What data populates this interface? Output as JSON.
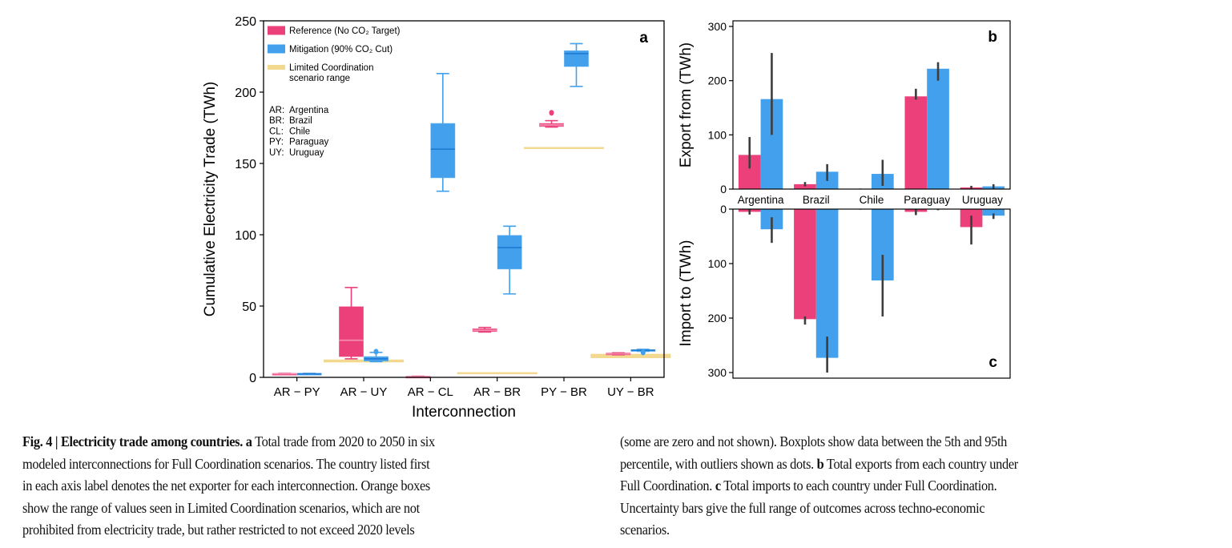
{
  "colors": {
    "reference": "#ec407a",
    "reference_light": "#f48fb1",
    "mitigation": "#42a0ec",
    "mitigation_dark": "#1e7ad2",
    "limited": "#f2d98f",
    "errbar": "#3d3d3d"
  },
  "chart_data": [
    {
      "panel": "a",
      "type": "box",
      "panel_label": "a",
      "xlabel": "Interconnection",
      "ylabel": "Cumulative Electricity Trade (TWh)",
      "ylim": [
        0,
        250
      ],
      "yticks": [
        0,
        50,
        100,
        150,
        200,
        250
      ],
      "categories": [
        "AR − PY",
        "AR − UY",
        "AR − CL",
        "AR − BR",
        "PY − BR",
        "UY − BR"
      ],
      "legend": {
        "position": "top-left",
        "entries": [
          {
            "key": "reference",
            "label": "Reference (No CO₂ Target)"
          },
          {
            "key": "mitigation",
            "label": "Mitigation (90% CO₂ Cut)"
          },
          {
            "key": "limited",
            "label": "Limited Coordination",
            "label2": "scenario range"
          }
        ],
        "abbreviations": [
          {
            "code": "AR:",
            "name": "Argentina"
          },
          {
            "code": "BR:",
            "name": "Brazil"
          },
          {
            "code": "CL:",
            "name": "Chile"
          },
          {
            "code": "PY:",
            "name": "Paraguay"
          },
          {
            "code": "UY:",
            "name": "Uruguay"
          }
        ]
      },
      "series": [
        {
          "name": "Reference (No CO2 Target)",
          "key": "reference",
          "boxes": [
            {
              "whislo": 2.2,
              "q1": 2.3,
              "med": 2.5,
              "q3": 2.7,
              "whishi": 2.8,
              "fliers": []
            },
            {
              "whislo": 13,
              "q1": 14.6,
              "med": 26,
              "q3": 49.5,
              "whishi": 63,
              "fliers": []
            },
            {
              "whislo": 0.2,
              "q1": 0.3,
              "med": 0.5,
              "q3": 0.7,
              "whishi": 0.8,
              "fliers": []
            },
            {
              "whislo": 31.8,
              "q1": 32.2,
              "med": 33,
              "q3": 34,
              "whishi": 35,
              "fliers": []
            },
            {
              "whislo": 175.5,
              "q1": 176,
              "med": 177,
              "q3": 178,
              "whishi": 180,
              "fliers": [
                185.5
              ]
            },
            {
              "whislo": 15.8,
              "q1": 16,
              "med": 16.5,
              "q3": 17,
              "whishi": 17.2,
              "fliers": []
            }
          ]
        },
        {
          "name": "Mitigation (90% CO2 Cut)",
          "key": "mitigation",
          "boxes": [
            {
              "whislo": 2.2,
              "q1": 2.3,
              "med": 2.5,
              "q3": 2.7,
              "whishi": 2.8,
              "fliers": []
            },
            {
              "whislo": 11,
              "q1": 11.5,
              "med": 13,
              "q3": 14.5,
              "whishi": 17.5,
              "fliers": [
                18
              ]
            },
            {
              "whislo": 130.5,
              "q1": 140,
              "med": 160,
              "q3": 178,
              "whishi": 213,
              "fliers": []
            },
            {
              "whislo": 58.5,
              "q1": 76,
              "med": 91,
              "q3": 99.5,
              "whishi": 106,
              "fliers": []
            },
            {
              "whislo": 204,
              "q1": 218,
              "med": 227,
              "q3": 229,
              "whishi": 234,
              "fliers": []
            },
            {
              "whislo": 18.3,
              "q1": 18.6,
              "med": 19,
              "q3": 19.4,
              "whishi": 19.6,
              "fliers": [
                17.5
              ]
            }
          ]
        }
      ],
      "limited_coordination_ranges": [
        null,
        [
          10.5,
          12.5
        ],
        null,
        [
          2.8,
          3.6
        ],
        [
          160.5,
          161.5
        ],
        [
          13.5,
          16.5
        ]
      ]
    },
    {
      "panel": "b",
      "type": "bar",
      "panel_label": "b",
      "ylabel": "Export from (TWh)",
      "ylim": [
        0,
        300
      ],
      "yticks": [
        0,
        100,
        200,
        300
      ],
      "categories": [
        "Argentina",
        "Brazil",
        "Chile",
        "Paraguay",
        "Uruguay"
      ],
      "series": [
        {
          "name": "Reference (No CO2 Target)",
          "key": "reference",
          "values": [
            63,
            9,
            0,
            171,
            3
          ],
          "ranges": [
            [
              38,
              96
            ],
            [
              5,
              13
            ],
            [
              0,
              1
            ],
            [
              165,
              185
            ],
            [
              0,
              6
            ]
          ]
        },
        {
          "name": "Mitigation (90% CO2 Cut)",
          "key": "mitigation",
          "values": [
            166,
            32,
            28,
            222,
            5
          ],
          "ranges": [
            [
              100,
              251
            ],
            [
              15,
              46
            ],
            [
              6,
              54
            ],
            [
              200,
              234
            ],
            [
              0,
              9
            ]
          ]
        }
      ]
    },
    {
      "panel": "c",
      "type": "bar",
      "panel_label": "c",
      "ylabel": "Import to (TWh)",
      "ylim": [
        0,
        300
      ],
      "yaxis_inverted": true,
      "yticks": [
        0,
        100,
        200,
        300
      ],
      "categories": [
        "Argentina",
        "Brazil",
        "Chile",
        "Paraguay",
        "Uruguay"
      ],
      "series": [
        {
          "name": "Reference (No CO2 Target)",
          "key": "reference",
          "values": [
            5,
            202,
            0,
            5,
            33
          ],
          "ranges": [
            [
              0,
              10
            ],
            [
              197,
              212
            ],
            [
              0,
              1
            ],
            [
              0,
              11
            ],
            [
              12,
              65
            ]
          ]
        },
        {
          "name": "Mitigation (90% CO2 Cut)",
          "key": "mitigation",
          "values": [
            37,
            273,
            131,
            0,
            12
          ],
          "ranges": [
            [
              15,
              62
            ],
            [
              234,
              300
            ],
            [
              84,
              197
            ],
            [
              0,
              2
            ],
            [
              8,
              18
            ]
          ]
        }
      ]
    }
  ],
  "caption": {
    "left_lines": [
      [
        {
          "b": "Fig. 4 | Electricity trade among countries. a"
        },
        {
          "t": " Total trade from 2020 to 2050 in six"
        }
      ],
      [
        {
          "t": "modeled interconnections for Full Coordination scenarios. The country listed first"
        }
      ],
      [
        {
          "t": "in each axis label denotes the net exporter for each interconnection. Orange boxes"
        }
      ],
      [
        {
          "t": "show the range of values seen in Limited Coordination scenarios, which are not"
        }
      ],
      [
        {
          "t": "prohibited from electricity trade, but rather restricted to not exceed 2020 levels"
        }
      ]
    ],
    "right_lines": [
      [
        {
          "t": "(some are zero and not shown). Boxplots show data between the 5th and 95th"
        }
      ],
      [
        {
          "t": "percentile, with outliers shown as dots. "
        },
        {
          "b": "b"
        },
        {
          "t": " Total exports from each country under"
        }
      ],
      [
        {
          "t": "Full Coordination. "
        },
        {
          "b": "c"
        },
        {
          "t": " Total imports to each country under Full Coordination."
        }
      ],
      [
        {
          "t": "Uncertainty bars give the full range of outcomes across techno-economic"
        }
      ],
      [
        {
          "t": "scenarios."
        }
      ]
    ]
  }
}
